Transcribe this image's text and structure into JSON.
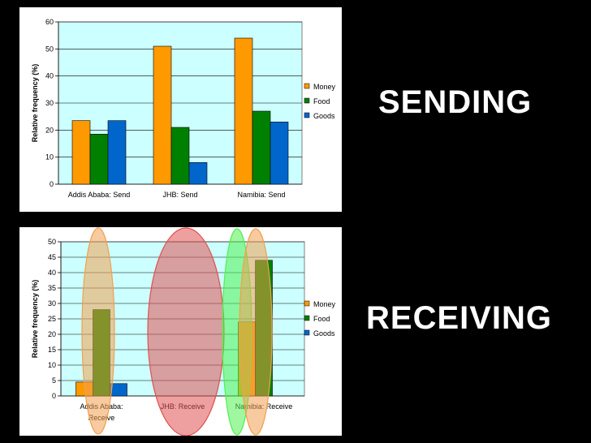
{
  "labels": {
    "sending": "SENDING",
    "receiving": "RECEIVING"
  },
  "colors": {
    "money": "#ff9900",
    "food": "#008000",
    "goods": "#0066cc",
    "plot_bg": "#ccffff"
  },
  "chart_data": [
    {
      "type": "bar",
      "title": "",
      "xlabel": "",
      "ylabel": "Relative frequency (%)",
      "categories": [
        "Addis Ababa: Send",
        "JHB: Send",
        "Namibia: Send"
      ],
      "series": [
        {
          "name": "Money",
          "values": [
            23.5,
            51,
            54
          ]
        },
        {
          "name": "Food",
          "values": [
            18.5,
            21,
            27
          ]
        },
        {
          "name": "Goods",
          "values": [
            23.5,
            8,
            23
          ]
        }
      ],
      "ylim": [
        0,
        60
      ],
      "yticks": [
        0,
        10,
        20,
        30,
        40,
        50,
        60
      ],
      "grid": true,
      "legend": "right"
    },
    {
      "type": "bar",
      "title": "",
      "xlabel": "",
      "ylabel": "Relative frequency (%)",
      "categories": [
        "Addis Ababa: Receive",
        "JHB: Receive",
        "Namibia: Receive"
      ],
      "series": [
        {
          "name": "Money",
          "values": [
            4.5,
            0,
            24
          ]
        },
        {
          "name": "Food",
          "values": [
            28,
            0,
            44
          ]
        },
        {
          "name": "Goods",
          "values": [
            4,
            0,
            0
          ]
        }
      ],
      "ylim": [
        0,
        50
      ],
      "yticks": [
        0,
        5,
        10,
        15,
        20,
        25,
        30,
        35,
        40,
        45,
        50
      ],
      "grid": true,
      "legend": "right",
      "annotations": [
        {
          "shape": "ellipse",
          "color": "#f0a050",
          "around": "Addis Ababa: Receive"
        },
        {
          "shape": "ellipse",
          "color": "#e05050",
          "around": "JHB: Receive"
        },
        {
          "shape": "ellipse",
          "color": "#50f050",
          "around": "Namibia: Receive (Money)"
        },
        {
          "shape": "ellipse",
          "color": "#f0a050",
          "around": "Namibia: Receive (Food)"
        }
      ]
    }
  ]
}
